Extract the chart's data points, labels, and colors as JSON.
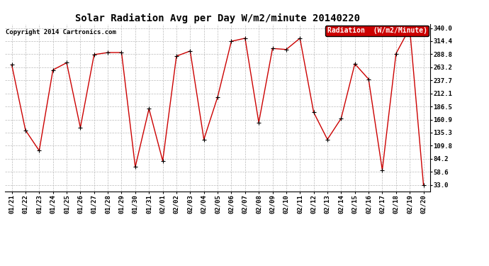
{
  "title": "Solar Radiation Avg per Day W/m2/minute 20140220",
  "copyright": "Copyright 2014 Cartronics.com",
  "legend_label": "Radiation  (W/m2/Minute)",
  "dates": [
    "01/21",
    "01/22",
    "01/23",
    "01/24",
    "01/25",
    "01/26",
    "01/27",
    "01/28",
    "01/29",
    "01/30",
    "01/31",
    "02/01",
    "02/02",
    "02/03",
    "02/04",
    "02/05",
    "02/06",
    "02/07",
    "02/08",
    "02/09",
    "02/10",
    "02/11",
    "02/12",
    "02/13",
    "02/14",
    "02/15",
    "02/16",
    "02/17",
    "02/18",
    "02/19",
    "02/20"
  ],
  "values": [
    268,
    140,
    100,
    258,
    272,
    145,
    288,
    292,
    292,
    68,
    182,
    80,
    285,
    295,
    122,
    205,
    314,
    320,
    155,
    300,
    298,
    320,
    175,
    122,
    163,
    270,
    240,
    62,
    290,
    340,
    33
  ],
  "line_color": "#cc0000",
  "marker_color": "#000000",
  "bg_color": "#ffffff",
  "plot_bg_color": "#ffffff",
  "grid_color": "#bbbbbb",
  "yticks": [
    33.0,
    58.6,
    84.2,
    109.8,
    135.3,
    160.9,
    186.5,
    212.1,
    237.7,
    263.2,
    288.8,
    314.4,
    340.0
  ],
  "ymin": 20.0,
  "ymax": 348.0,
  "title_fontsize": 10,
  "tick_fontsize": 6.5,
  "copyright_fontsize": 6.5,
  "legend_fontsize": 7,
  "legend_bg_color": "#cc0000",
  "legend_text_color": "#ffffff"
}
